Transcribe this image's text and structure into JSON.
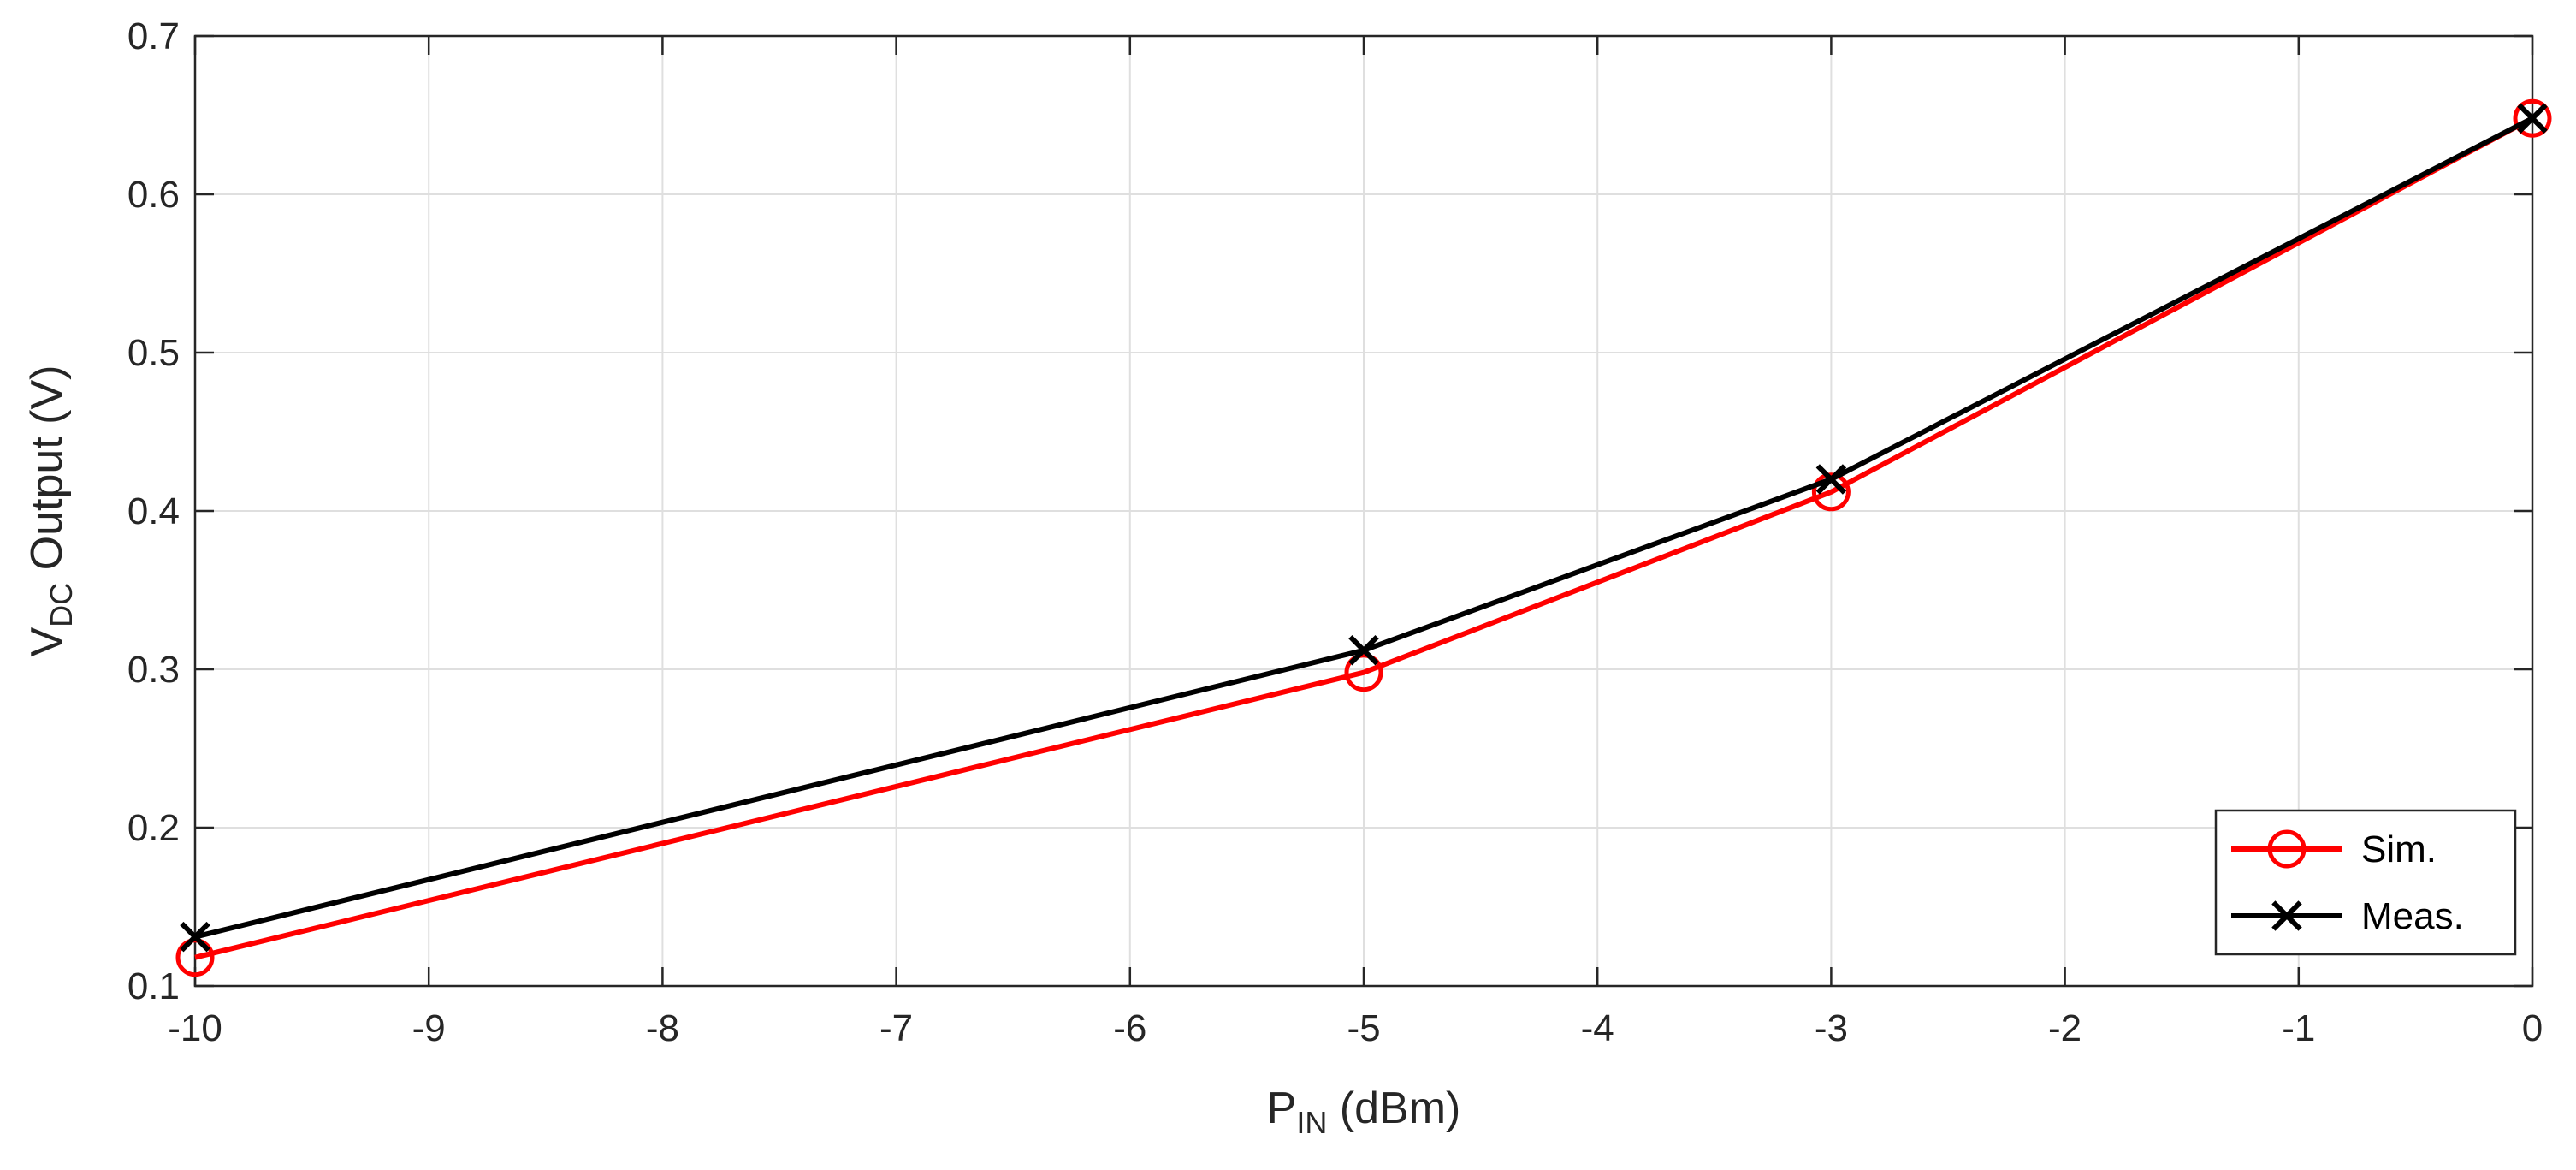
{
  "chart_data": {
    "type": "line",
    "title": "",
    "xlabel": {
      "main": "P",
      "sub": "IN",
      "rest": " (dBm)"
    },
    "ylabel": {
      "main": "V",
      "sub": "DC",
      "rest": " Output (V)"
    },
    "xlim": [
      -10,
      0
    ],
    "ylim": [
      0.1,
      0.7
    ],
    "xticks": [
      -10,
      -9,
      -8,
      -7,
      -6,
      -5,
      -4,
      -3,
      -2,
      -1,
      0
    ],
    "yticks": [
      0.1,
      0.2,
      0.3,
      0.4,
      0.5,
      0.6,
      0.7
    ],
    "xtick_labels": [
      "-10",
      "-9",
      "-8",
      "-7",
      "-6",
      "-5",
      "-4",
      "-3",
      "-2",
      "-1",
      "0"
    ],
    "ytick_labels": [
      "0.1",
      "0.2",
      "0.3",
      "0.4",
      "0.5",
      "0.6",
      "0.7"
    ],
    "grid": true,
    "legend_position": "bottom-right",
    "series": [
      {
        "name": "Sim.",
        "color": "#ff0000",
        "marker": "circle",
        "x": [
          -10,
          -5,
          -3,
          0
        ],
        "y": [
          0.118,
          0.298,
          0.412,
          0.648
        ]
      },
      {
        "name": "Meas.",
        "color": "#000000",
        "marker": "x",
        "x": [
          -10,
          -5,
          -3,
          0
        ],
        "y": [
          0.131,
          0.312,
          0.42,
          0.648
        ]
      }
    ]
  }
}
